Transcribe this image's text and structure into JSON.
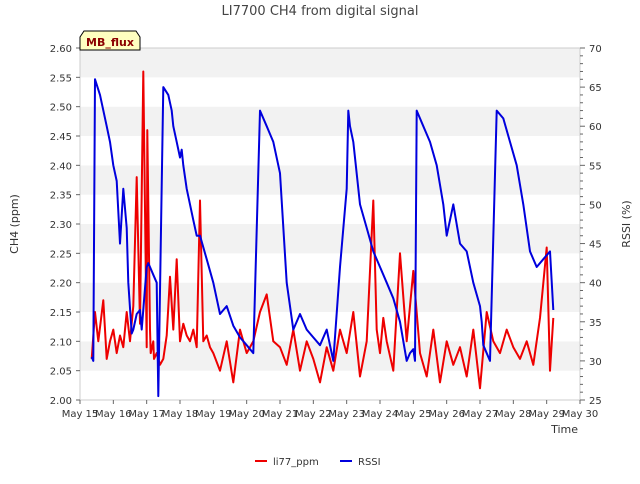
{
  "chart_data": {
    "type": "line",
    "title": "LI7700 CH4 from digital signal",
    "site_badge": "MB_flux",
    "xlabel": "Time",
    "ylabel_left": "CH4 (ppm)",
    "ylabel_right": "RSSI (%)",
    "x_range": [
      15,
      30
    ],
    "x_ticks": [
      "May 15",
      "May 16",
      "May 17",
      "May 18",
      "May 19",
      "May 20",
      "May 21",
      "May 22",
      "May 23",
      "May 24",
      "May 25",
      "May 26",
      "May 27",
      "May 28",
      "May 29",
      "May 30"
    ],
    "ylim_left": [
      2.0,
      2.6
    ],
    "y_ticks_left": [
      "2.00",
      "2.05",
      "2.10",
      "2.15",
      "2.20",
      "2.25",
      "2.30",
      "2.35",
      "2.40",
      "2.45",
      "2.50",
      "2.55",
      "2.60"
    ],
    "ylim_right": [
      25,
      70
    ],
    "y_ticks_right": [
      "25",
      "30",
      "35",
      "40",
      "45",
      "50",
      "55",
      "60",
      "65",
      "70"
    ],
    "legend": [
      {
        "name": "li77_ppm",
        "color": "#ee0000"
      },
      {
        "name": "RSSI",
        "color": "#0000dd"
      }
    ],
    "series": [
      {
        "name": "li77_ppm",
        "axis": "left",
        "color": "#ee0000",
        "x": [
          15.35,
          15.45,
          15.55,
          15.7,
          15.8,
          15.9,
          16.0,
          16.1,
          16.2,
          16.3,
          16.4,
          16.5,
          16.6,
          16.7,
          16.8,
          16.9,
          17.0,
          17.02,
          17.1,
          17.12,
          17.2,
          17.22,
          17.3,
          17.4,
          17.5,
          17.6,
          17.7,
          17.8,
          17.9,
          18.0,
          18.1,
          18.2,
          18.3,
          18.4,
          18.5,
          18.6,
          18.7,
          18.8,
          18.9,
          19.0,
          19.2,
          19.4,
          19.6,
          19.8,
          20.0,
          20.2,
          20.4,
          20.6,
          20.8,
          21.0,
          21.2,
          21.4,
          21.6,
          21.8,
          22.0,
          22.2,
          22.4,
          22.6,
          22.8,
          23.0,
          23.2,
          23.4,
          23.6,
          23.8,
          23.9,
          24.0,
          24.1,
          24.2,
          24.4,
          24.6,
          24.8,
          25.0,
          25.2,
          25.4,
          25.6,
          25.8,
          26.0,
          26.2,
          26.4,
          26.6,
          26.8,
          27.0,
          27.2,
          27.4,
          27.6,
          27.8,
          28.0,
          28.2,
          28.4,
          28.6,
          28.8,
          29.0,
          29.1,
          29.2
        ],
        "values": [
          2.07,
          2.15,
          2.1,
          2.17,
          2.07,
          2.1,
          2.12,
          2.08,
          2.11,
          2.09,
          2.15,
          2.1,
          2.16,
          2.38,
          2.13,
          2.56,
          2.09,
          2.46,
          2.12,
          2.08,
          2.1,
          2.07,
          2.08,
          2.06,
          2.07,
          2.11,
          2.21,
          2.12,
          2.24,
          2.1,
          2.13,
          2.11,
          2.1,
          2.12,
          2.09,
          2.34,
          2.1,
          2.11,
          2.09,
          2.08,
          2.05,
          2.1,
          2.03,
          2.12,
          2.08,
          2.1,
          2.15,
          2.18,
          2.1,
          2.09,
          2.06,
          2.12,
          2.05,
          2.1,
          2.07,
          2.03,
          2.09,
          2.05,
          2.12,
          2.08,
          2.15,
          2.04,
          2.1,
          2.34,
          2.12,
          2.08,
          2.14,
          2.1,
          2.05,
          2.25,
          2.1,
          2.22,
          2.08,
          2.04,
          2.12,
          2.03,
          2.1,
          2.06,
          2.09,
          2.04,
          2.12,
          2.02,
          2.15,
          2.1,
          2.08,
          2.12,
          2.09,
          2.07,
          2.1,
          2.06,
          2.14,
          2.26,
          2.05,
          2.14
        ]
      },
      {
        "name": "RSSI",
        "axis": "right",
        "color": "#0000dd",
        "x": [
          15.35,
          15.4,
          15.45,
          15.6,
          15.8,
          15.9,
          16.0,
          16.1,
          16.2,
          16.3,
          16.4,
          16.45,
          16.55,
          16.6,
          16.7,
          16.8,
          16.85,
          17.0,
          17.05,
          17.1,
          17.2,
          17.3,
          17.35,
          17.5,
          17.65,
          17.75,
          17.8,
          17.9,
          18.0,
          18.05,
          18.1,
          18.2,
          18.4,
          18.5,
          18.6,
          18.8,
          19.0,
          19.2,
          19.4,
          19.6,
          19.8,
          20.0,
          20.2,
          20.4,
          20.6,
          20.8,
          21.0,
          21.2,
          21.4,
          21.6,
          21.8,
          22.0,
          22.2,
          22.4,
          22.6,
          22.8,
          23.0,
          23.05,
          23.1,
          23.2,
          23.4,
          23.6,
          23.8,
          24.0,
          24.2,
          24.4,
          24.6,
          24.8,
          24.9,
          25.0,
          25.05,
          25.1,
          25.3,
          25.5,
          25.7,
          25.9,
          26.0,
          26.2,
          26.4,
          26.6,
          26.8,
          27.0,
          27.05,
          27.1,
          27.3,
          27.5,
          27.7,
          27.9,
          28.1,
          28.3,
          28.5,
          28.7,
          28.9,
          29.1,
          29.2
        ],
        "values": [
          30.5,
          30.0,
          66.0,
          64.0,
          60.0,
          58.0,
          55.0,
          53.0,
          45.0,
          52.0,
          47.0,
          40.0,
          33.5,
          34.0,
          36.0,
          36.5,
          34.0,
          42.0,
          42.5,
          42.0,
          41.0,
          40.0,
          25.5,
          65.0,
          64.0,
          62.0,
          60.0,
          58.0,
          56.0,
          57.0,
          55.0,
          52.0,
          48.0,
          46.0,
          46.0,
          43.0,
          40.0,
          36.0,
          37.0,
          34.5,
          33.0,
          32.0,
          31.0,
          62.0,
          60.0,
          58.0,
          54.0,
          40.0,
          34.0,
          36.0,
          34.0,
          33.0,
          32.0,
          34.0,
          30.0,
          42.0,
          52.0,
          62.0,
          60.0,
          58.0,
          50.0,
          47.0,
          44.0,
          42.0,
          40.0,
          38.0,
          35.0,
          30.0,
          31.0,
          31.5,
          30.0,
          62.0,
          60.0,
          58.0,
          55.0,
          50.0,
          46.0,
          50.0,
          45.0,
          44.0,
          40.0,
          37.0,
          35.0,
          32.0,
          30.0,
          62.0,
          61.0,
          58.0,
          55.0,
          50.0,
          44.0,
          42.0,
          43.0,
          44.0,
          36.5
        ]
      }
    ]
  }
}
